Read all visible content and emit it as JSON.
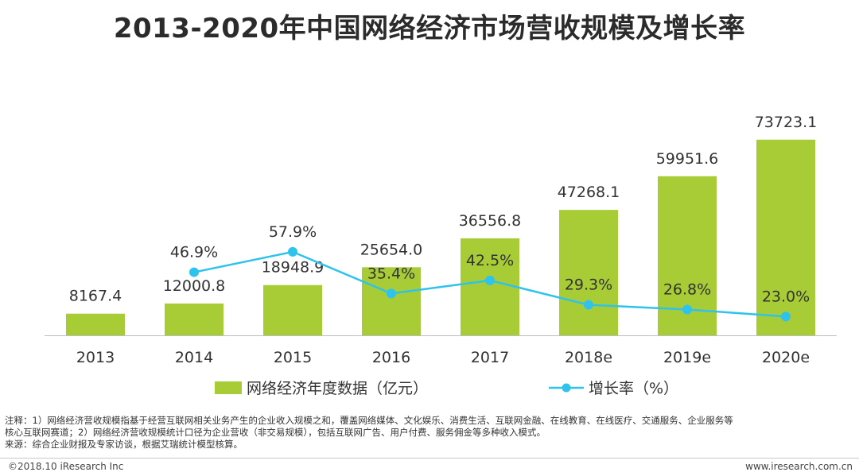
{
  "chart_data": {
    "type": "bar+line",
    "title": "2013-2020年中国网络经济市场营收规模及增长率",
    "categories": [
      "2013",
      "2014",
      "2015",
      "2016",
      "2017",
      "2018e",
      "2019e",
      "2020e"
    ],
    "series": [
      {
        "name": "网络经济年度数据（亿元）",
        "type": "bar",
        "color": "#a8cc35",
        "values": [
          8167.4,
          12000.8,
          18948.9,
          25654.0,
          36556.8,
          47268.1,
          59951.6,
          73723.1
        ],
        "labels": [
          "8167.4",
          "12000.8",
          "18948.9",
          "25654.0",
          "36556.8",
          "47268.1",
          "59951.6",
          "73723.1"
        ]
      },
      {
        "name": "增长率（%）",
        "type": "line",
        "color": "#2ec3ec",
        "values": [
          null,
          46.9,
          57.9,
          35.4,
          42.5,
          29.3,
          26.8,
          23.0
        ],
        "labels": [
          "",
          "46.9%",
          "57.9%",
          "35.4%",
          "42.5%",
          "29.3%",
          "26.8%",
          "23.0%"
        ]
      }
    ],
    "bar_ylim": [
      0,
      100000
    ],
    "line_ylim": [
      0,
      180
    ],
    "legend": [
      "网络经济年度数据（亿元）",
      "增长率（%）"
    ]
  },
  "notes": {
    "line1": "注释：1）网络经济营收规模指基于经营互联网相关业务产生的企业收入规模之和，覆盖网络媒体、文化娱乐、消费生活、互联网金融、在线教育、在线医疗、交通服务、企业服务等",
    "line2": "核心互联网赛道；2）网络经济营收规模统计口径为企业营收（非交易规模），包括互联网广告、用户付费、服务佣金等多种收入模式。",
    "line3": "来源：综合企业财报及专家访谈，根据艾瑞统计模型核算。"
  },
  "footer": {
    "copyright": "©2018.10 iResearch Inc",
    "website": "www.iresearch.com.cn"
  }
}
